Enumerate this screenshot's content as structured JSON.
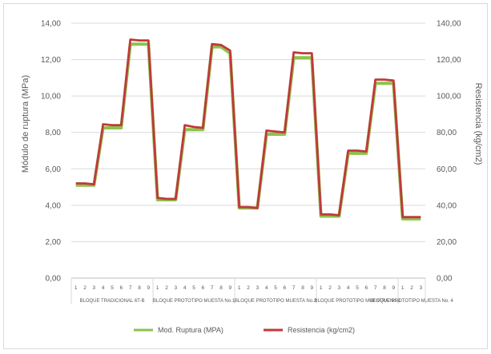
{
  "chart_data": {
    "type": "line",
    "ylabel": "Módulo de ruptura (MPa)",
    "y2label": "Resistencia (kg/cm2)",
    "ylim": [
      0,
      14
    ],
    "y2lim": [
      0,
      140
    ],
    "yticks": [
      "0,00",
      "2,00",
      "4,00",
      "6,00",
      "8,00",
      "10,00",
      "12,00",
      "14,00"
    ],
    "y2ticks": [
      "0,00",
      "20,00",
      "40,00",
      "60,00",
      "80,00",
      "100,00",
      "120,00",
      "140,00"
    ],
    "grid": true,
    "legend_position": "bottom",
    "groups": [
      {
        "label": "BLOQUE TRADICIONAL 6T-B",
        "ticks": [
          "1",
          "2",
          "3",
          "4",
          "5",
          "6",
          "7",
          "8",
          "9"
        ]
      },
      {
        "label": "BLOQUE PROTOTIPO MUESTA No.1",
        "ticks": [
          "1",
          "2",
          "3",
          "4",
          "5",
          "6",
          "7",
          "8",
          "9"
        ]
      },
      {
        "label": "BLOQUE PROTOTIPO MUESTA No.2",
        "ticks": [
          "1",
          "2",
          "3",
          "4",
          "5",
          "6",
          "7",
          "8",
          "9"
        ]
      },
      {
        "label": "BLOQUE PROTOTIPO MUESTRA No.3",
        "ticks": [
          "1",
          "2",
          "3",
          "4",
          "5",
          "6",
          "7",
          "8",
          "9"
        ]
      },
      {
        "label": "BLOQUE PROTOTIPO MUESTA No. 4",
        "ticks": [
          "1",
          "2",
          "3"
        ]
      }
    ],
    "series": [
      {
        "name": "Mod. Ruptura (MPA)",
        "color": "#8dc24c",
        "axis": "left",
        "values": [
          5.1,
          5.1,
          5.1,
          8.25,
          8.25,
          8.25,
          12.85,
          12.85,
          12.85,
          4.3,
          4.3,
          4.3,
          8.15,
          8.15,
          8.15,
          12.7,
          12.7,
          12.35,
          3.85,
          3.85,
          3.85,
          7.9,
          7.9,
          7.9,
          12.1,
          12.1,
          12.1,
          3.4,
          3.4,
          3.4,
          6.85,
          6.85,
          6.85,
          10.7,
          10.7,
          10.7,
          3.25,
          3.25,
          3.25
        ]
      },
      {
        "name": "Resistencia (kg/cm2)",
        "color": "#c0393b",
        "axis": "right",
        "values": [
          52,
          52,
          51.5,
          84.5,
          84,
          84,
          131,
          130.5,
          130.5,
          44,
          43.5,
          43.5,
          84,
          83,
          82.5,
          128.5,
          128,
          125,
          39,
          39,
          38.5,
          81,
          80.5,
          80,
          124,
          123.5,
          123.5,
          35,
          35,
          34.5,
          70,
          70,
          69.5,
          109,
          109,
          108.5,
          33.5,
          33.5,
          33.5
        ]
      }
    ]
  }
}
